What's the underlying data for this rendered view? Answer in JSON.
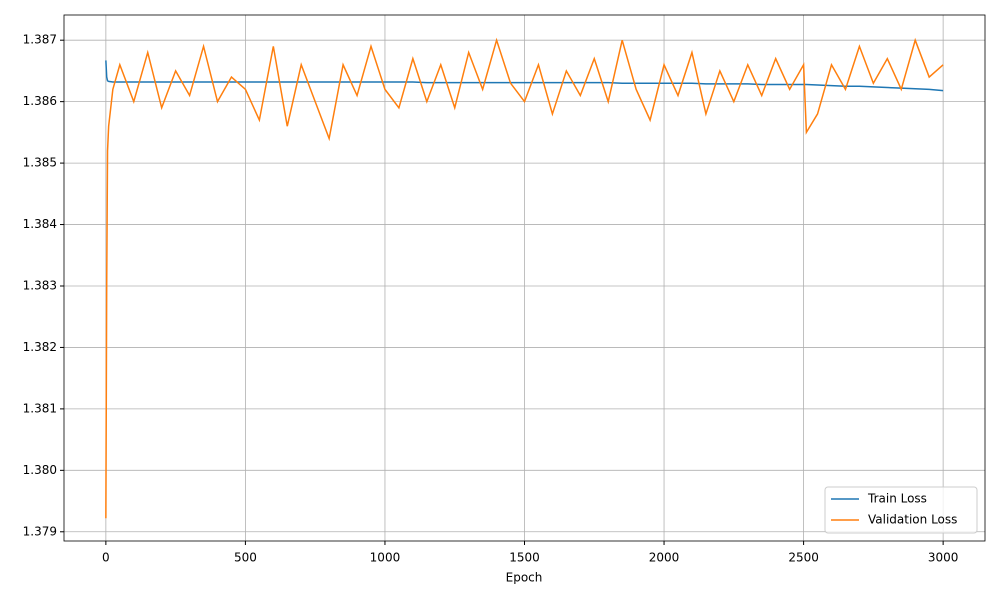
{
  "chart_data": {
    "type": "line",
    "xlabel": "Epoch",
    "x": [
      0,
      3,
      6,
      10,
      25,
      50,
      100,
      150,
      200,
      250,
      300,
      350,
      400,
      450,
      500,
      550,
      600,
      650,
      700,
      750,
      800,
      850,
      900,
      950,
      1000,
      1050,
      1100,
      1150,
      1200,
      1250,
      1300,
      1350,
      1400,
      1450,
      1500,
      1550,
      1600,
      1650,
      1700,
      1750,
      1800,
      1850,
      1900,
      1950,
      2000,
      2050,
      2100,
      2150,
      2200,
      2250,
      2300,
      2350,
      2400,
      2450,
      2500,
      2510,
      2550,
      2600,
      2650,
      2700,
      2750,
      2800,
      2850,
      2900,
      2950,
      3000
    ],
    "series": [
      {
        "name": "Train Loss",
        "color": "#1f77b4",
        "values": [
          1.38667,
          1.3864,
          1.38634,
          1.38633,
          1.38632,
          1.38632,
          1.38632,
          1.38632,
          1.38632,
          1.38632,
          1.38632,
          1.38632,
          1.38632,
          1.38632,
          1.38632,
          1.38632,
          1.38632,
          1.38632,
          1.38632,
          1.38632,
          1.38632,
          1.38632,
          1.38632,
          1.38632,
          1.38632,
          1.38632,
          1.38632,
          1.38631,
          1.38631,
          1.38631,
          1.38631,
          1.38631,
          1.38631,
          1.38631,
          1.38631,
          1.38631,
          1.38631,
          1.38631,
          1.38631,
          1.38631,
          1.38631,
          1.3863,
          1.3863,
          1.3863,
          1.3863,
          1.3863,
          1.3863,
          1.38629,
          1.38629,
          1.38629,
          1.38629,
          1.38628,
          1.38628,
          1.38628,
          1.38628,
          1.38628,
          1.38627,
          1.38626,
          1.38625,
          1.38625,
          1.38624,
          1.38623,
          1.38622,
          1.38621,
          1.3862,
          1.38618
        ]
      },
      {
        "name": "Validation Loss",
        "color": "#ff7f0e",
        "values": [
          1.37922,
          1.383,
          1.3852,
          1.3856,
          1.3862,
          1.3866,
          1.386,
          1.3868,
          1.3859,
          1.3865,
          1.3861,
          1.3869,
          1.386,
          1.3864,
          1.3862,
          1.3857,
          1.3869,
          1.3856,
          1.3866,
          1.386,
          1.3854,
          1.3866,
          1.3861,
          1.3869,
          1.3862,
          1.3859,
          1.3867,
          1.386,
          1.3866,
          1.3859,
          1.3868,
          1.3862,
          1.387,
          1.3863,
          1.386,
          1.3866,
          1.3858,
          1.3865,
          1.3861,
          1.3867,
          1.386,
          1.387,
          1.3862,
          1.3857,
          1.3866,
          1.3861,
          1.3868,
          1.3858,
          1.3865,
          1.386,
          1.3866,
          1.3861,
          1.3867,
          1.3862,
          1.3866,
          1.3855,
          1.3858,
          1.3866,
          1.3862,
          1.3869,
          1.3863,
          1.3867,
          1.3862,
          1.387,
          1.3864,
          1.3866
        ]
      }
    ],
    "xlim": [
      -150,
      3150
    ],
    "xticks": [
      0,
      500,
      1000,
      1500,
      2000,
      2500,
      3000
    ],
    "ylim": [
      1.37885,
      1.38741
    ],
    "yticks": [
      1.379,
      {
        "value": 1.38,
        "label": "1.380"
      },
      1.381,
      1.382,
      1.383,
      1.384,
      1.385,
      1.386,
      1.387
    ],
    "grid": true,
    "legend": "lower right"
  }
}
